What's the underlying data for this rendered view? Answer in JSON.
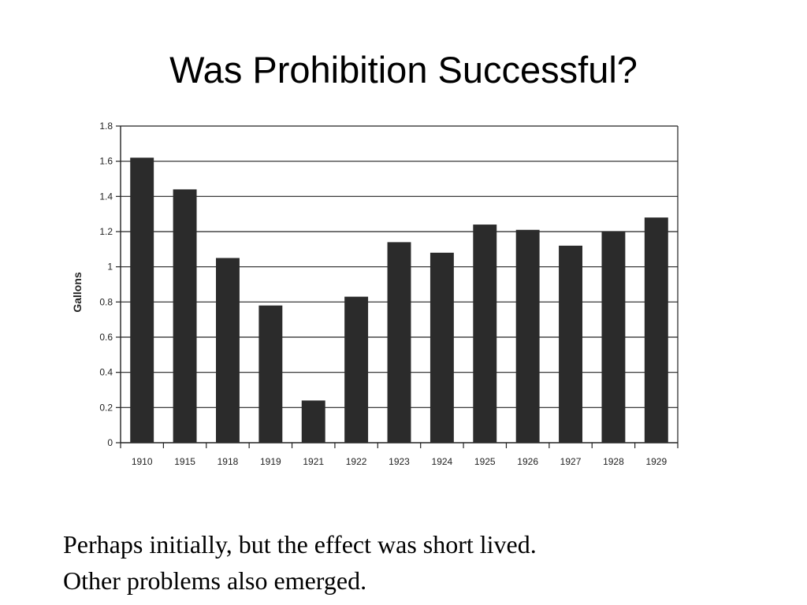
{
  "slide": {
    "title": "Was Prohibition Successful?",
    "caption_lines": [
      "Perhaps initially, but the effect was short lived.",
      "Other problems also emerged."
    ]
  },
  "chart_data": {
    "type": "bar",
    "categories": [
      "1910",
      "1915",
      "1918",
      "1919",
      "1921",
      "1922",
      "1923",
      "1924",
      "1925",
      "1926",
      "1927",
      "1928",
      "1929"
    ],
    "values": [
      1.62,
      1.44,
      1.05,
      0.78,
      0.24,
      0.83,
      1.14,
      1.08,
      1.24,
      1.21,
      1.12,
      1.2,
      1.28
    ],
    "title": "",
    "xlabel": "",
    "ylabel": "Gallons",
    "ylim": [
      0,
      1.8
    ],
    "yticks": [
      "0",
      "0.2",
      "0.4",
      "0.6",
      "0.8",
      "1",
      "1.2",
      "1.4",
      "1.6",
      "1.8"
    ],
    "grid": true,
    "bar_color": "#2b2b2b"
  }
}
